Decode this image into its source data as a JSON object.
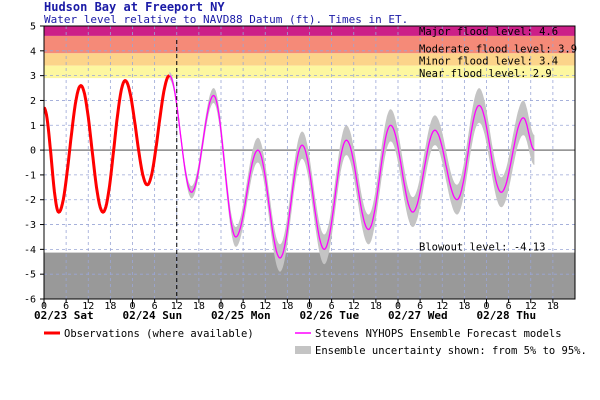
{
  "title": "Hudson Bay at Freeport NY",
  "subtitle": "Water level relative to NAVD88 Datum (ft). Times in ET.",
  "colors": {
    "major": "#cc1f88",
    "moderate": "#f58a78",
    "minor": "#fcd48a",
    "action": "#fdf7a0",
    "blowout": "#999999",
    "observations": "#ff0000",
    "forecast": "#ff00ff",
    "uncertainty": "#c4c4c4",
    "title": "#1a1aa6"
  },
  "bands": {
    "major": "Major flood level: 4.6",
    "moderate": "Moderate flood level: 3.9",
    "minor": "Minor flood level: 3.4",
    "near": "Near flood level: 2.9",
    "blowout": "Blowout level: -4.13"
  },
  "legend": {
    "observations": "Observations (where available)",
    "forecast": "Stevens NYHOPS Ensemble Forecast models",
    "uncertainty": "Ensemble uncertainty shown: from 5% to 95%."
  },
  "chart_data": {
    "type": "line",
    "title": "Hudson Bay at Freeport NY",
    "subtitle": "Water level relative to NAVD88 Datum (ft). Times in ET.",
    "xlabel": "",
    "ylabel": "",
    "ylim": [
      -6,
      5
    ],
    "yticks": [
      "-6",
      "-5",
      "-4",
      "-3",
      "-2",
      "-1",
      "0",
      "1",
      "2",
      "3",
      "4",
      "5"
    ],
    "xlim_hours": [
      0,
      138
    ],
    "hour_ticks": [
      {
        "h": 0,
        "label": "0"
      },
      {
        "h": 6,
        "label": "6"
      },
      {
        "h": 12,
        "label": "12"
      },
      {
        "h": 18,
        "label": "18"
      },
      {
        "h": 24,
        "label": "0"
      },
      {
        "h": 30,
        "label": "6"
      },
      {
        "h": 36,
        "label": "12"
      },
      {
        "h": 42,
        "label": "18"
      },
      {
        "h": 48,
        "label": "0"
      },
      {
        "h": 54,
        "label": "6"
      },
      {
        "h": 60,
        "label": "12"
      },
      {
        "h": 66,
        "label": "18"
      },
      {
        "h": 72,
        "label": "0"
      },
      {
        "h": 78,
        "label": "6"
      },
      {
        "h": 84,
        "label": "12"
      },
      {
        "h": 90,
        "label": "18"
      },
      {
        "h": 96,
        "label": "0"
      },
      {
        "h": 102,
        "label": "6"
      },
      {
        "h": 108,
        "label": "12"
      },
      {
        "h": 114,
        "label": "18"
      },
      {
        "h": 120,
        "label": "0"
      },
      {
        "h": 126,
        "label": "6"
      },
      {
        "h": 132,
        "label": "12"
      },
      {
        "h": 138,
        "label": "18"
      }
    ],
    "day_labels": [
      {
        "h": 0,
        "label": "02/23 Sat"
      },
      {
        "h": 24,
        "label": "02/24 Sun"
      },
      {
        "h": 48,
        "label": "02/25 Mon"
      },
      {
        "h": 72,
        "label": "02/26 Tue"
      },
      {
        "h": 96,
        "label": "02/27 Wed"
      },
      {
        "h": 120,
        "label": "02/28 Thu"
      }
    ],
    "thresholds": {
      "major": 4.6,
      "moderate": 3.9,
      "minor": 3.4,
      "near": 2.9,
      "blowout": -4.13
    },
    "now_hour": 36,
    "observations": {
      "name": "Observations (where available)",
      "points": [
        [
          0,
          1.7
        ],
        [
          4,
          -2.5
        ],
        [
          10,
          2.6
        ],
        [
          16,
          -2.5
        ],
        [
          22,
          2.8
        ],
        [
          28,
          -1.4
        ],
        [
          34,
          3.0
        ]
      ]
    },
    "forecast": {
      "name": "Stevens NYHOPS Ensemble Forecast models",
      "points": [
        [
          34,
          3.0
        ],
        [
          40,
          -1.7
        ],
        [
          46,
          2.2
        ],
        [
          52,
          -3.5
        ],
        [
          58,
          0.0
        ],
        [
          64,
          -4.35
        ],
        [
          70,
          0.2
        ],
        [
          76,
          -4.0
        ],
        [
          82,
          0.4
        ],
        [
          88,
          -3.2
        ],
        [
          94,
          1.0
        ],
        [
          100,
          -2.5
        ],
        [
          106,
          0.8
        ],
        [
          112,
          -2.0
        ],
        [
          118,
          1.8
        ],
        [
          124,
          -1.7
        ],
        [
          130,
          1.3
        ],
        [
          133,
          0.0
        ]
      ]
    },
    "uncertainty_width": [
      [
        34,
        0.15
      ],
      [
        40,
        0.25
      ],
      [
        46,
        0.3
      ],
      [
        52,
        0.4
      ],
      [
        58,
        0.5
      ],
      [
        64,
        0.55
      ],
      [
        70,
        0.55
      ],
      [
        76,
        0.6
      ],
      [
        82,
        0.6
      ],
      [
        88,
        0.6
      ],
      [
        94,
        0.65
      ],
      [
        100,
        0.6
      ],
      [
        106,
        0.6
      ],
      [
        112,
        0.6
      ],
      [
        118,
        0.7
      ],
      [
        124,
        0.6
      ],
      [
        130,
        0.7
      ],
      [
        133,
        0.6
      ]
    ]
  }
}
